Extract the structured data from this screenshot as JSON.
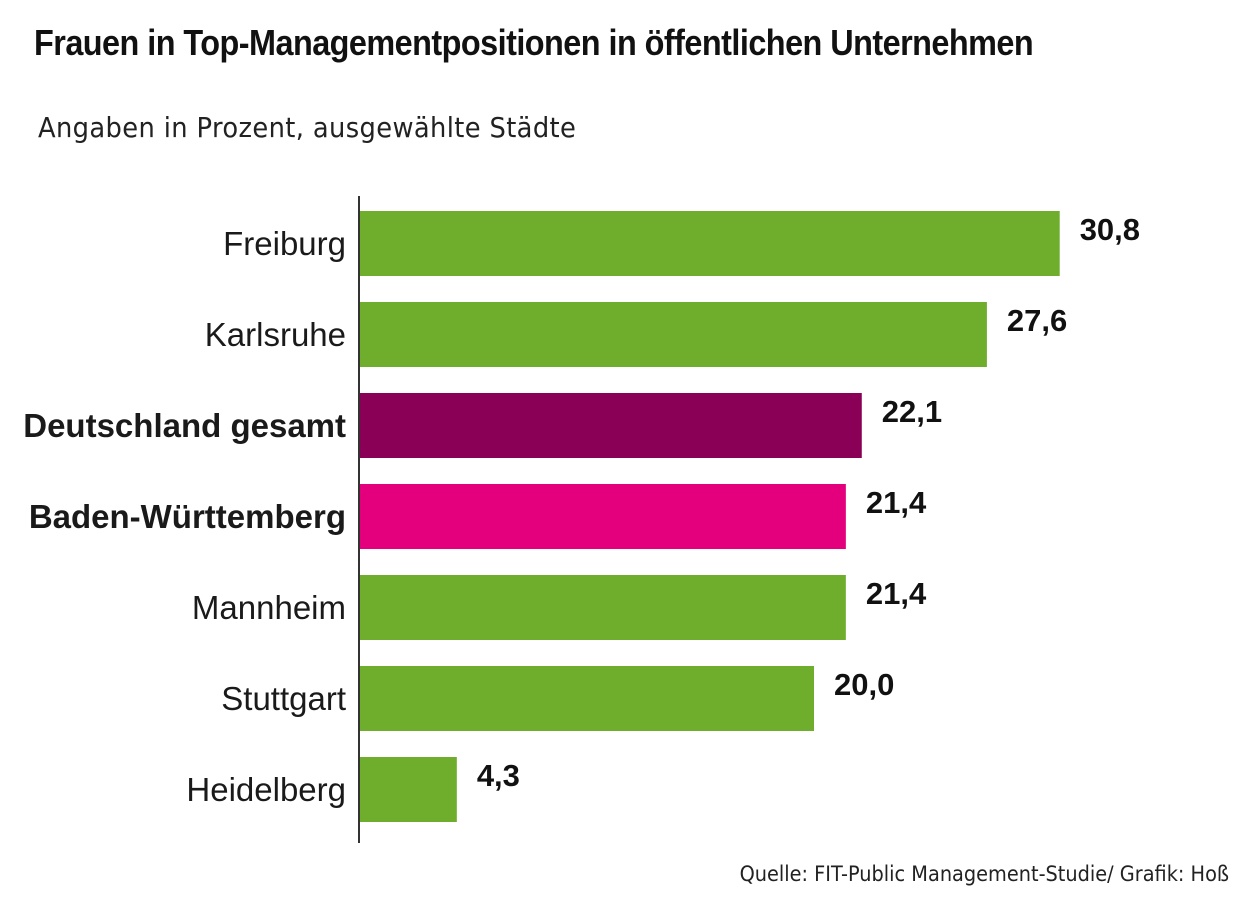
{
  "title": "Frauen in Top-Managementpositionen in öffentlichen Unternehmen",
  "subtitle": "Angaben in Prozent, ausgewählte Städte",
  "source": "Quelle: FIT-Public Management-Studie/ Grafik: Hoß",
  "chart_data": {
    "type": "bar",
    "orientation": "horizontal",
    "title": "Frauen in Top-Managementpositionen in öffentlichen Unternehmen",
    "subtitle": "Angaben in Prozent, ausgewählte Städte",
    "categories": [
      "Freiburg",
      "Karlsruhe",
      "Deutschland gesamt",
      "Baden-Württemberg",
      "Mannheim",
      "Stuttgart",
      "Heidelberg"
    ],
    "values": [
      30.8,
      27.6,
      22.1,
      21.4,
      21.4,
      20.0,
      4.3
    ],
    "value_labels": [
      "30,8",
      "27,6",
      "22,1",
      "21,4",
      "21,4",
      "20,0",
      "4,3"
    ],
    "bold_categories": [
      "Deutschland gesamt",
      "Baden-Württemberg"
    ],
    "bar_colors": [
      "#6fad2c",
      "#6fad2c",
      "#8b0057",
      "#e4007d",
      "#6fad2c",
      "#6fad2c",
      "#6fad2c"
    ],
    "xlabel": "",
    "ylabel": "",
    "grid": false,
    "legend": "none"
  }
}
